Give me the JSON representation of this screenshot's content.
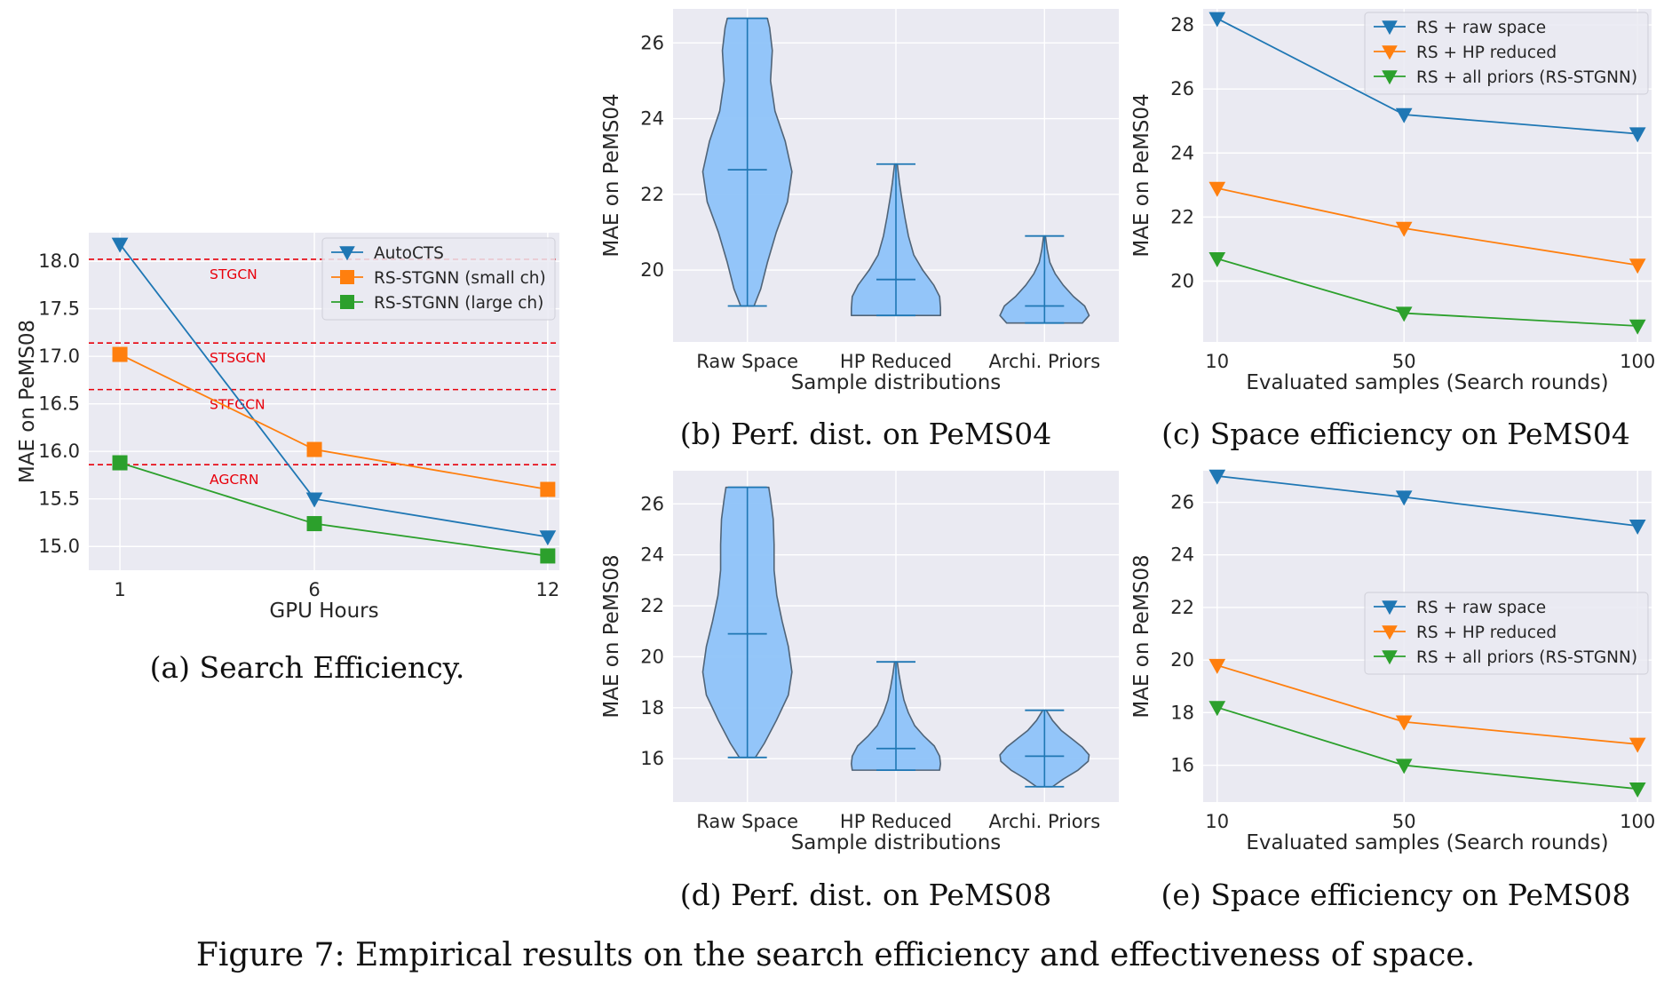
{
  "figure_caption": "Figure 7: Empirical results on the search efficiency and effectiveness of space.",
  "colors": {
    "blue": "#1f77b4",
    "orange": "#ff7f0e",
    "green": "#2ca02c",
    "violin": "#8ec3f9",
    "ref": "#e8000b",
    "axes_bg": "#eaeaf2"
  },
  "chart_data": [
    {
      "id": "a",
      "type": "line",
      "caption": "(a) Search Efficiency.",
      "xlabel": "GPU Hours",
      "ylabel": "MAE on PeMS08",
      "categories": [
        "1",
        "6",
        "12"
      ],
      "x": [
        1,
        6,
        12
      ],
      "xlim": [
        0.2,
        12.3
      ],
      "ylim": [
        14.75,
        18.3
      ],
      "yticks": [
        15.0,
        15.5,
        16.0,
        16.5,
        17.0,
        17.5,
        18.0
      ],
      "ytick_labels": [
        "15.0",
        "15.5",
        "16.0",
        "16.5",
        "17.0",
        "17.5",
        "18.0"
      ],
      "grid": true,
      "legend": "top-right",
      "series": [
        {
          "name": "AutoCTS",
          "marker": "triangle-down",
          "color": "blue",
          "values": [
            18.18,
            15.5,
            15.1
          ]
        },
        {
          "name": "RS-STGNN (small ch)",
          "marker": "square",
          "color": "orange",
          "values": [
            17.02,
            16.02,
            15.6
          ]
        },
        {
          "name": "RS-STGNN (large ch)",
          "marker": "square",
          "color": "green",
          "values": [
            15.88,
            15.24,
            14.9
          ]
        }
      ],
      "reference_lines": [
        {
          "label": "STGCN",
          "y": 18.02
        },
        {
          "label": "STSGCN",
          "y": 17.14
        },
        {
          "label": "STFGCN",
          "y": 16.65
        },
        {
          "label": "AGCRN",
          "y": 15.86
        }
      ]
    },
    {
      "id": "b",
      "type": "violin",
      "caption": "(b) Perf. dist. on PeMS04",
      "xlabel": "Sample distributions",
      "ylabel": "MAE on PeMS04",
      "categories": [
        "Raw Space",
        "HP Reduced",
        "Archi. Priors"
      ],
      "ylim": [
        18.1,
        26.9
      ],
      "yticks": [
        20,
        22,
        24,
        26
      ],
      "ytick_labels": [
        "20",
        "22",
        "24",
        "26"
      ],
      "grid": true,
      "violins": [
        {
          "min": 19.05,
          "max": 26.65,
          "median": 22.65,
          "profile": [
            [
              19.05,
              0.15
            ],
            [
              19.5,
              0.3
            ],
            [
              20.2,
              0.45
            ],
            [
              21.0,
              0.65
            ],
            [
              21.8,
              0.9
            ],
            [
              22.6,
              1.0
            ],
            [
              23.4,
              0.85
            ],
            [
              24.2,
              0.62
            ],
            [
              25.0,
              0.52
            ],
            [
              25.8,
              0.56
            ],
            [
              26.4,
              0.5
            ],
            [
              26.65,
              0.45
            ]
          ]
        },
        {
          "min": 18.8,
          "max": 22.8,
          "median": 19.75,
          "profile": [
            [
              18.8,
              1.0
            ],
            [
              19.0,
              1.0
            ],
            [
              19.3,
              0.98
            ],
            [
              19.6,
              0.85
            ],
            [
              20.0,
              0.6
            ],
            [
              20.4,
              0.4
            ],
            [
              20.9,
              0.28
            ],
            [
              21.4,
              0.2
            ],
            [
              21.9,
              0.13
            ],
            [
              22.3,
              0.08
            ],
            [
              22.8,
              0.03
            ]
          ]
        },
        {
          "min": 18.6,
          "max": 20.9,
          "median": 19.05,
          "profile": [
            [
              18.6,
              0.85
            ],
            [
              18.8,
              1.0
            ],
            [
              19.05,
              0.9
            ],
            [
              19.3,
              0.65
            ],
            [
              19.6,
              0.42
            ],
            [
              19.9,
              0.24
            ],
            [
              20.2,
              0.12
            ],
            [
              20.55,
              0.06
            ],
            [
              20.9,
              0.02
            ]
          ]
        }
      ]
    },
    {
      "id": "c",
      "type": "line",
      "caption": "(c) Space efficiency on PeMS04",
      "xlabel": "Evaluated samples (Search rounds)",
      "ylabel": "MAE on PeMS04",
      "categories": [
        "10",
        "50",
        "100"
      ],
      "x": [
        10,
        50,
        100
      ],
      "xlim": [
        7,
        103
      ],
      "ylim": [
        18.1,
        28.5
      ],
      "yticks": [
        20,
        22,
        24,
        26,
        28
      ],
      "ytick_labels": [
        "20",
        "22",
        "24",
        "26",
        "28"
      ],
      "grid": true,
      "legend": "top-right",
      "series": [
        {
          "name": "RS + raw space",
          "marker": "triangle-down",
          "color": "blue",
          "values": [
            28.2,
            25.2,
            24.6
          ]
        },
        {
          "name": "RS + HP reduced",
          "marker": "triangle-down",
          "color": "orange",
          "values": [
            22.9,
            21.65,
            20.5
          ]
        },
        {
          "name": "RS + all priors (RS-STGNN)",
          "marker": "triangle-down",
          "color": "green",
          "values": [
            20.7,
            19.0,
            18.6
          ]
        }
      ]
    },
    {
      "id": "d",
      "type": "violin",
      "caption": "(d) Perf. dist. on PeMS08",
      "xlabel": "Sample distributions",
      "ylabel": "MAE on PeMS08",
      "categories": [
        "Raw Space",
        "HP Reduced",
        "Archi. Priors"
      ],
      "ylim": [
        14.3,
        27.3
      ],
      "yticks": [
        16,
        18,
        20,
        22,
        24,
        26
      ],
      "ytick_labels": [
        "16",
        "18",
        "20",
        "22",
        "24",
        "26"
      ],
      "grid": true,
      "violins": [
        {
          "min": 16.05,
          "max": 26.65,
          "median": 20.9,
          "profile": [
            [
              16.05,
              0.18
            ],
            [
              16.6,
              0.38
            ],
            [
              17.5,
              0.65
            ],
            [
              18.5,
              0.92
            ],
            [
              19.4,
              1.0
            ],
            [
              20.4,
              0.92
            ],
            [
              21.4,
              0.78
            ],
            [
              22.4,
              0.66
            ],
            [
              23.4,
              0.6
            ],
            [
              24.4,
              0.6
            ],
            [
              25.4,
              0.58
            ],
            [
              26.2,
              0.52
            ],
            [
              26.65,
              0.48
            ]
          ]
        },
        {
          "min": 15.55,
          "max": 19.8,
          "median": 16.4,
          "profile": [
            [
              15.55,
              0.98
            ],
            [
              15.8,
              1.0
            ],
            [
              16.1,
              0.98
            ],
            [
              16.5,
              0.86
            ],
            [
              16.9,
              0.62
            ],
            [
              17.3,
              0.42
            ],
            [
              17.8,
              0.28
            ],
            [
              18.3,
              0.18
            ],
            [
              18.8,
              0.12
            ],
            [
              19.3,
              0.07
            ],
            [
              19.8,
              0.03
            ]
          ]
        },
        {
          "min": 14.9,
          "max": 17.9,
          "median": 16.1,
          "profile": [
            [
              14.9,
              0.18
            ],
            [
              15.2,
              0.42
            ],
            [
              15.55,
              0.75
            ],
            [
              15.9,
              0.98
            ],
            [
              16.15,
              1.0
            ],
            [
              16.45,
              0.85
            ],
            [
              16.8,
              0.6
            ],
            [
              17.1,
              0.38
            ],
            [
              17.5,
              0.18
            ],
            [
              17.9,
              0.04
            ]
          ]
        }
      ]
    },
    {
      "id": "e",
      "type": "line",
      "caption": "(e) Space efficiency on PeMS08",
      "xlabel": "Evaluated samples (Search rounds)",
      "ylabel": "MAE on PeMS08",
      "categories": [
        "10",
        "50",
        "100"
      ],
      "x": [
        10,
        50,
        100
      ],
      "xlim": [
        7,
        103
      ],
      "ylim": [
        14.6,
        27.2
      ],
      "yticks": [
        16,
        18,
        20,
        22,
        24,
        26
      ],
      "ytick_labels": [
        "16",
        "18",
        "20",
        "22",
        "24",
        "26"
      ],
      "grid": true,
      "legend": "center-right",
      "series": [
        {
          "name": "RS + raw space",
          "marker": "triangle-down",
          "color": "blue",
          "values": [
            27.0,
            26.2,
            25.1
          ]
        },
        {
          "name": "RS + HP reduced",
          "marker": "triangle-down",
          "color": "orange",
          "values": [
            19.8,
            17.65,
            16.8
          ]
        },
        {
          "name": "RS + all priors (RS-STGNN)",
          "marker": "triangle-down",
          "color": "green",
          "values": [
            18.2,
            16.0,
            15.1
          ]
        }
      ]
    }
  ]
}
